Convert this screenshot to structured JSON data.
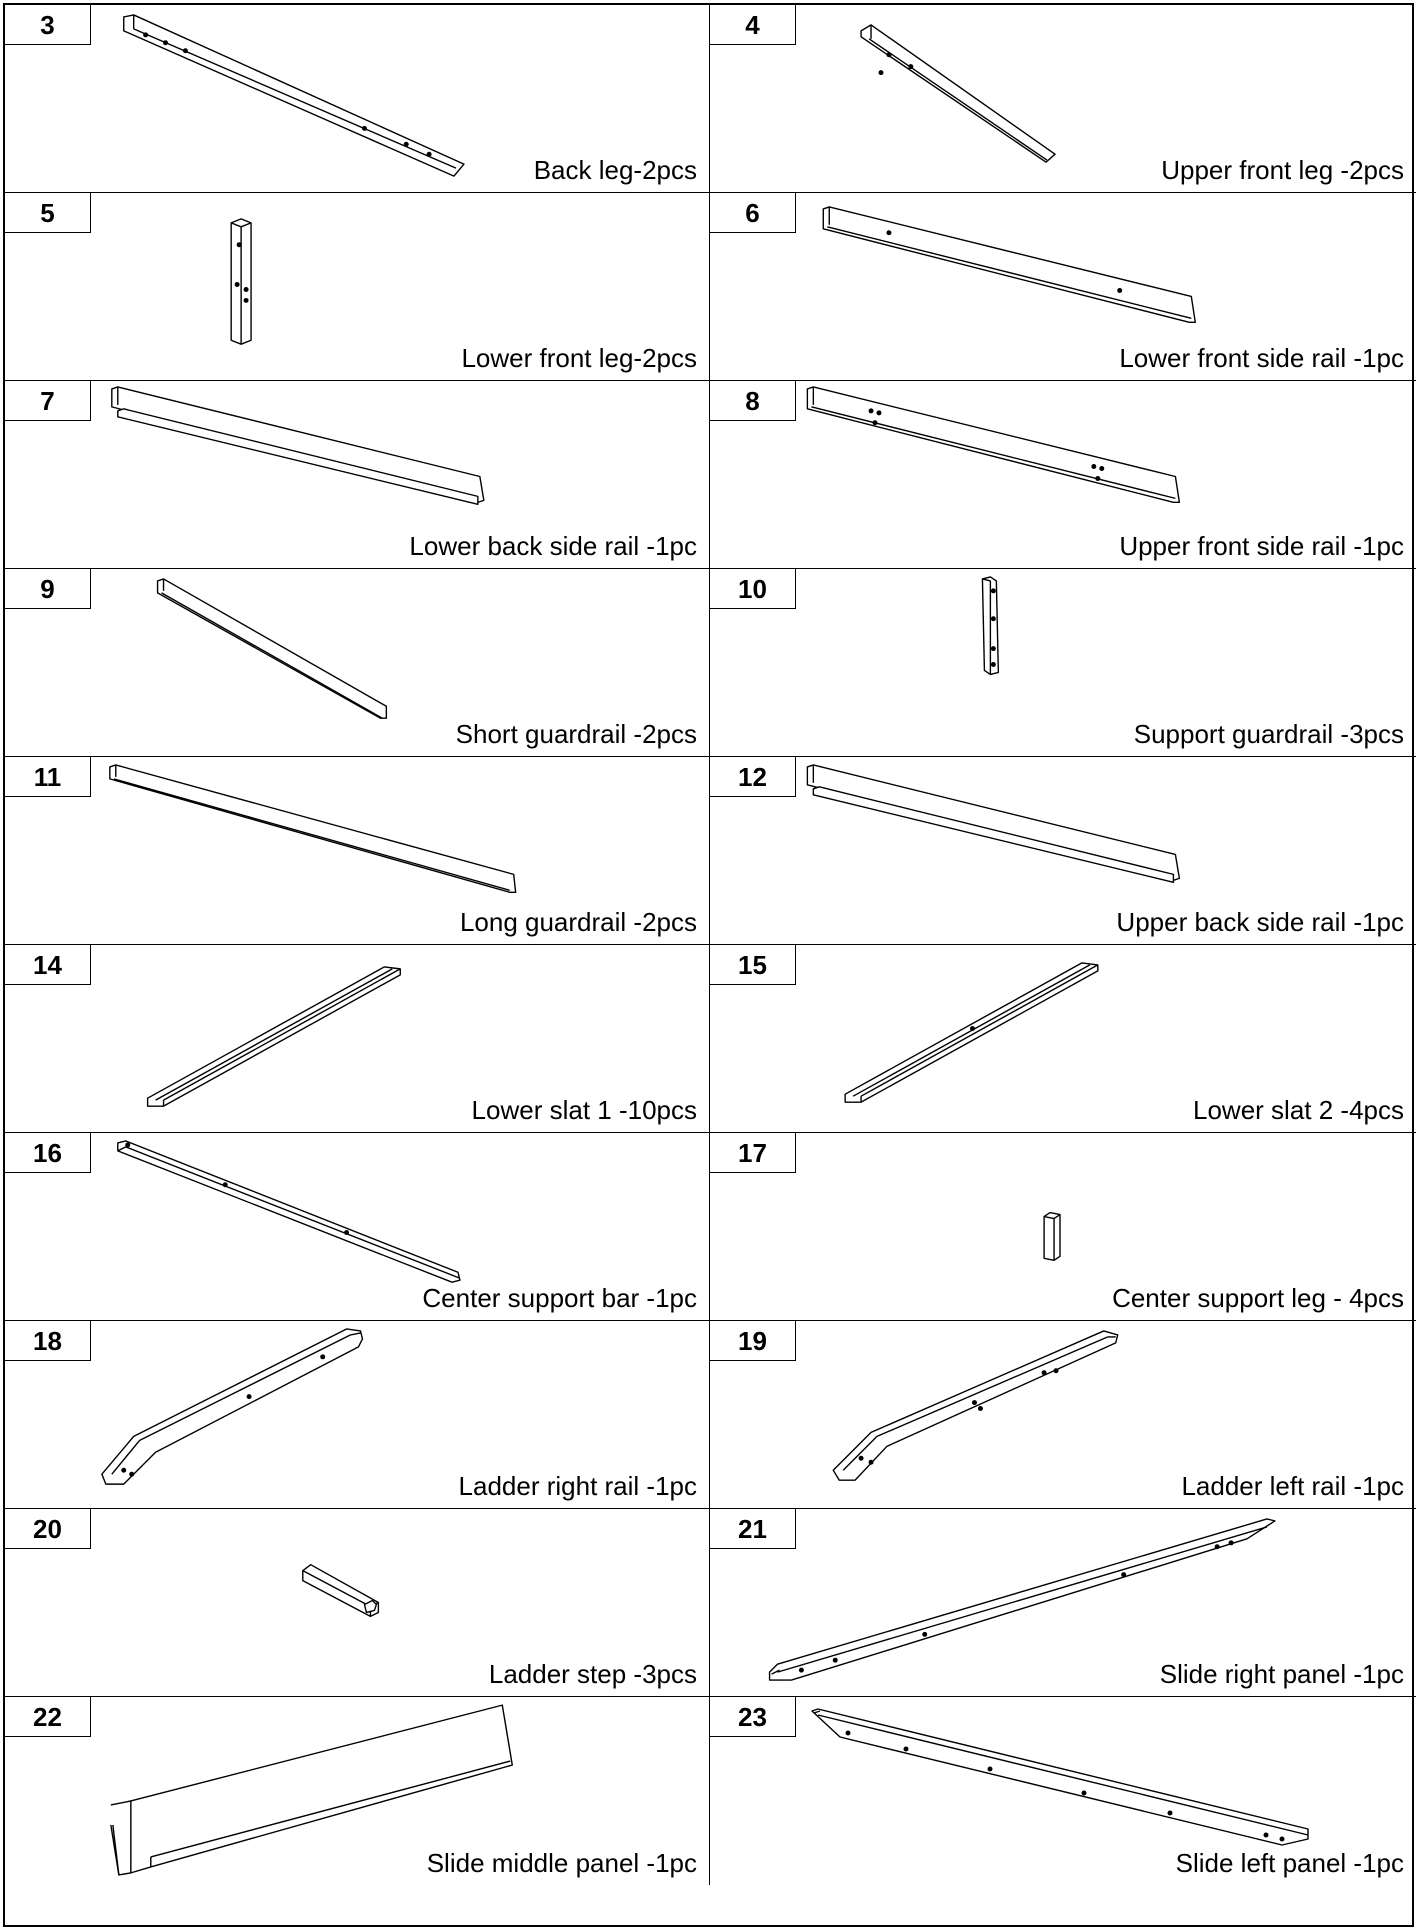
{
  "parts": [
    {
      "number": "3",
      "label": "Back leg-2pcs",
      "icon": "square-tube-leg"
    },
    {
      "number": "4",
      "label": "Upper front leg -2pcs",
      "icon": "square-tube-leg"
    },
    {
      "number": "5",
      "label": "Lower front leg-2pcs",
      "icon": "square-tube-post"
    },
    {
      "number": "6",
      "label": "Lower front side rail -1pc",
      "icon": "flat-rail"
    },
    {
      "number": "7",
      "label": "Lower back side rail -1pc",
      "icon": "rail-with-ledge"
    },
    {
      "number": "8",
      "label": "Upper front side rail -1pc",
      "icon": "flat-rail"
    },
    {
      "number": "9",
      "label": "Short guardrail -2pcs",
      "icon": "flat-bar"
    },
    {
      "number": "10",
      "label": "Support guardrail -3pcs",
      "icon": "short-post"
    },
    {
      "number": "11",
      "label": "Long guardrail -2pcs",
      "icon": "flat-bar"
    },
    {
      "number": "12",
      "label": "Upper back side rail -1pc",
      "icon": "rail-with-ledge"
    },
    {
      "number": "14",
      "label": "Lower slat 1 -10pcs",
      "icon": "slat"
    },
    {
      "number": "15",
      "label": "Lower slat 2 -4pcs",
      "icon": "slat"
    },
    {
      "number": "16",
      "label": "Center support bar -1pc",
      "icon": "flat-bar"
    },
    {
      "number": "17",
      "label": "Center support leg - 4pcs",
      "icon": "short-block"
    },
    {
      "number": "18",
      "label": "Ladder right rail -1pc",
      "icon": "bent-rail"
    },
    {
      "number": "19",
      "label": "Ladder left rail -1pc",
      "icon": "bent-rail"
    },
    {
      "number": "20",
      "label": "Ladder step -3pcs",
      "icon": "step-block"
    },
    {
      "number": "21",
      "label": "Slide right panel -1pc",
      "icon": "long-panel"
    },
    {
      "number": "22",
      "label": "Slide middle panel -1pc",
      "icon": "wide-panel"
    },
    {
      "number": "23",
      "label": "Slide left panel -1pc",
      "icon": "long-panel"
    }
  ]
}
